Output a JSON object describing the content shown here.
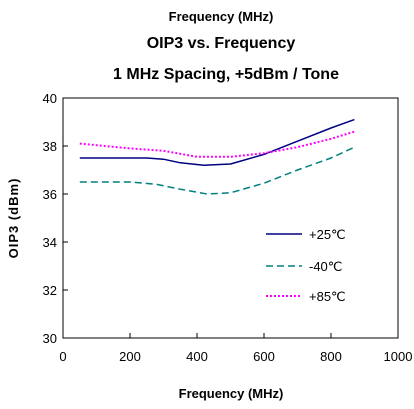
{
  "chart_data": {
    "type": "line",
    "top_label": "Frequency (MHz)",
    "title": "OIP3 vs. Frequency",
    "subtitle": "1 MHz Spacing, +5dBm / Tone",
    "xlabel": "Frequency (MHz)",
    "ylabel": "OIP3 (dBm)",
    "xlim": [
      0,
      1000
    ],
    "ylim": [
      30,
      40
    ],
    "xticks": [
      "0",
      "200",
      "400",
      "600",
      "800",
      "1000"
    ],
    "yticks": [
      "30",
      "32",
      "34",
      "36",
      "38",
      "40"
    ],
    "grid": false,
    "legend_position": "right",
    "series": [
      {
        "name": "+25℃",
        "color": "#000080",
        "dash": "solid",
        "points": [
          [
            50,
            37.5
          ],
          [
            250,
            37.5
          ],
          [
            300,
            37.45
          ],
          [
            350,
            37.3
          ],
          [
            420,
            37.2
          ],
          [
            500,
            37.25
          ],
          [
            600,
            37.65
          ],
          [
            700,
            38.2
          ],
          [
            800,
            38.75
          ],
          [
            870,
            39.1
          ]
        ]
      },
      {
        "name": "-40℃",
        "color": "#008080",
        "dash": "dashed",
        "points": [
          [
            50,
            36.5
          ],
          [
            200,
            36.5
          ],
          [
            280,
            36.4
          ],
          [
            350,
            36.2
          ],
          [
            430,
            36.0
          ],
          [
            500,
            36.05
          ],
          [
            600,
            36.45
          ],
          [
            700,
            37.0
          ],
          [
            800,
            37.5
          ],
          [
            870,
            37.95
          ]
        ]
      },
      {
        "name": "+85℃",
        "color": "#ff00ff",
        "dash": "dotted",
        "points": [
          [
            50,
            38.1
          ],
          [
            200,
            37.9
          ],
          [
            300,
            37.8
          ],
          [
            400,
            37.55
          ],
          [
            500,
            37.55
          ],
          [
            600,
            37.7
          ],
          [
            700,
            37.95
          ],
          [
            800,
            38.3
          ],
          [
            870,
            38.6
          ]
        ]
      }
    ]
  }
}
